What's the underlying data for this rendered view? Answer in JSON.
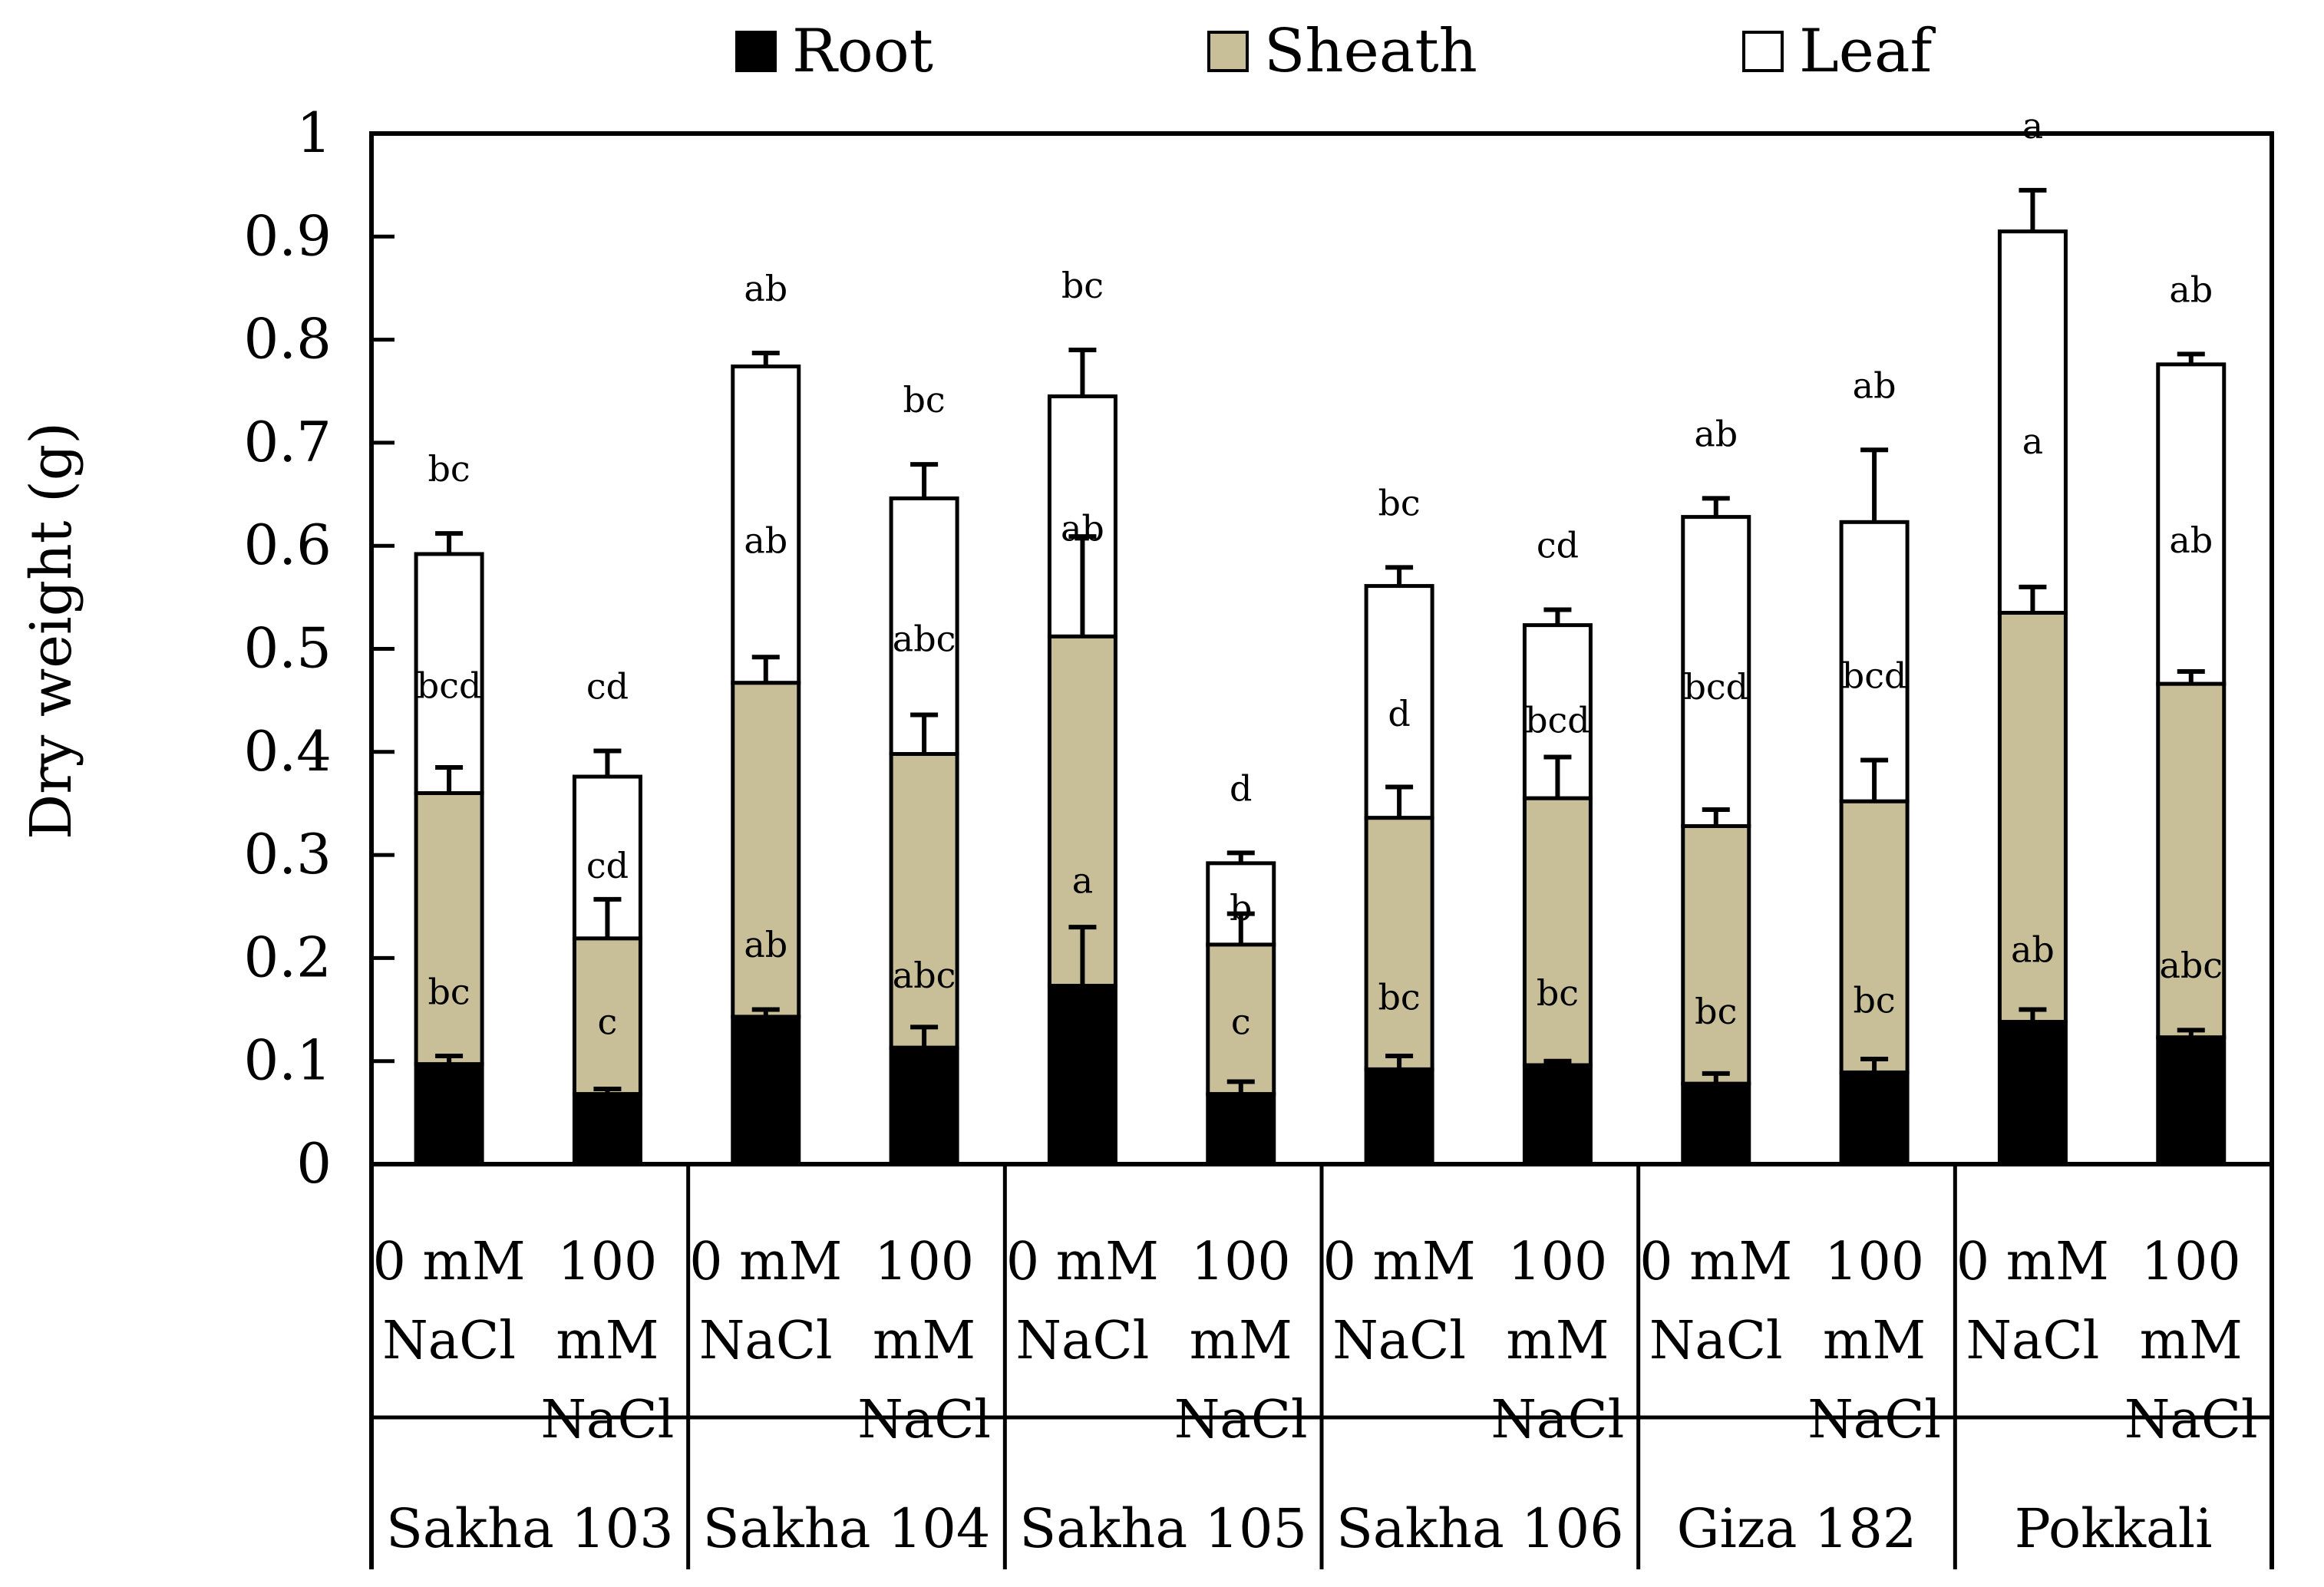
{
  "chart_data": {
    "type": "stacked-bar",
    "title": "",
    "ylabel": "Dry weight (g)",
    "xlabel": "",
    "ylim": [
      0,
      1
    ],
    "yticks": [
      0,
      0.1,
      0.2,
      0.3,
      0.4,
      0.5,
      0.6,
      0.7,
      0.8,
      0.9,
      1
    ],
    "ytick_labels": [
      "0",
      "0.1",
      "0.2",
      "0.3",
      "0.4",
      "0.5",
      "0.6",
      "0.7",
      "0.8",
      "0.9",
      "1"
    ],
    "legend": {
      "placement": "top-center",
      "entries": [
        {
          "name": "Root",
          "color": "#000000"
        },
        {
          "name": "Sheath",
          "color": "#c8bf98"
        },
        {
          "name": "Leaf",
          "color": "#ffffff"
        }
      ]
    },
    "treatment_labels": {
      "control": [
        "0 mM",
        "NaCl"
      ],
      "salt": [
        "100",
        "mM",
        "NaCl"
      ]
    },
    "groups": [
      "Sakha 103",
      "Sakha 104",
      "Sakha 105",
      "Sakha 106",
      "Giza 182",
      "Pokkali"
    ],
    "bars": [
      {
        "group": "Sakha 103",
        "treatment": "control",
        "root": 0.097,
        "sheath": 0.263,
        "leaf": 0.232,
        "root_err": 0.008,
        "sheath_err": 0.025,
        "leaf_err": 0.02,
        "root_letter": "",
        "sheath_letter": "bc",
        "leaf_letter": "bcd",
        "total_letter": "bc"
      },
      {
        "group": "Sakha 103",
        "treatment": "salt",
        "root": 0.068,
        "sheath": 0.151,
        "leaf": 0.157,
        "root_err": 0.005,
        "sheath_err": 0.038,
        "leaf_err": 0.025,
        "root_letter": "",
        "sheath_letter": "c",
        "leaf_letter": "cd",
        "total_letter": "cd"
      },
      {
        "group": "Sakha 104",
        "treatment": "control",
        "root": 0.143,
        "sheath": 0.324,
        "leaf": 0.307,
        "root_err": 0.007,
        "sheath_err": 0.025,
        "leaf_err": 0.013,
        "root_letter": "",
        "sheath_letter": "ab",
        "leaf_letter": "ab",
        "total_letter": "ab"
      },
      {
        "group": "Sakha 104",
        "treatment": "salt",
        "root": 0.113,
        "sheath": 0.285,
        "leaf": 0.248,
        "root_err": 0.02,
        "sheath_err": 0.038,
        "leaf_err": 0.033,
        "root_letter": "",
        "sheath_letter": "abc",
        "leaf_letter": "abc",
        "total_letter": "bc"
      },
      {
        "group": "Sakha 105",
        "treatment": "control",
        "root": 0.173,
        "sheath": 0.339,
        "leaf": 0.233,
        "root_err": 0.057,
        "sheath_err": 0.097,
        "leaf_err": 0.045,
        "root_letter": "a",
        "sheath_letter": "",
        "leaf_letter": "ab",
        "total_letter": "bc"
      },
      {
        "group": "Sakha 105",
        "treatment": "salt",
        "root": 0.068,
        "sheath": 0.145,
        "leaf": 0.079,
        "root_err": 0.012,
        "sheath_err": 0.03,
        "leaf_err": 0.01,
        "root_letter": "",
        "sheath_letter": "c",
        "leaf_letter": "b",
        "total_letter": "d"
      },
      {
        "group": "Sakha 106",
        "treatment": "control",
        "root": 0.092,
        "sheath": 0.244,
        "leaf": 0.225,
        "root_err": 0.013,
        "sheath_err": 0.03,
        "leaf_err": 0.018,
        "root_letter": "",
        "sheath_letter": "bc",
        "leaf_letter": "d",
        "total_letter": "bc"
      },
      {
        "group": "Sakha 106",
        "treatment": "salt",
        "root": 0.096,
        "sheath": 0.259,
        "leaf": 0.168,
        "root_err": 0.004,
        "sheath_err": 0.04,
        "leaf_err": 0.015,
        "root_letter": "",
        "sheath_letter": "bc",
        "leaf_letter": "bcd",
        "total_letter": "cd"
      },
      {
        "group": "Giza 182",
        "treatment": "control",
        "root": 0.078,
        "sheath": 0.25,
        "leaf": 0.3,
        "root_err": 0.01,
        "sheath_err": 0.016,
        "leaf_err": 0.018,
        "root_letter": "",
        "sheath_letter": "bc",
        "leaf_letter": "bcd",
        "total_letter": "ab"
      },
      {
        "group": "Giza 182",
        "treatment": "salt",
        "root": 0.089,
        "sheath": 0.263,
        "leaf": 0.271,
        "root_err": 0.013,
        "sheath_err": 0.04,
        "leaf_err": 0.07,
        "root_letter": "",
        "sheath_letter": "bc",
        "leaf_letter": "bcd",
        "total_letter": "ab"
      },
      {
        "group": "Pokkali",
        "treatment": "control",
        "root": 0.138,
        "sheath": 0.397,
        "leaf": 0.37,
        "root_err": 0.012,
        "sheath_err": 0.025,
        "leaf_err": 0.04,
        "root_letter": "",
        "sheath_letter": "ab",
        "leaf_letter": "a",
        "total_letter": "a"
      },
      {
        "group": "Pokkali",
        "treatment": "salt",
        "root": 0.123,
        "sheath": 0.343,
        "leaf": 0.31,
        "root_err": 0.007,
        "sheath_err": 0.012,
        "leaf_err": 0.01,
        "root_letter": "",
        "sheath_letter": "abc",
        "leaf_letter": "ab",
        "total_letter": "ab"
      }
    ]
  }
}
